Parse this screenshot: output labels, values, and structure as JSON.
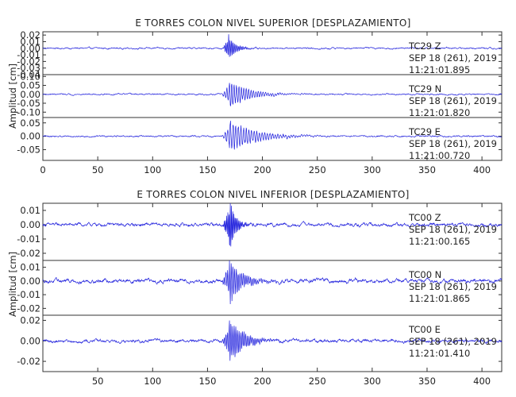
{
  "chart_data": [
    {
      "type": "line",
      "title": "E TORRES COLON NIVEL SUPERIOR [DESPLAZAMIENTO]",
      "ylabel": "Amplitud [cm]",
      "xlim": [
        0,
        418
      ],
      "x_ticks": [
        "0",
        "50",
        "100",
        "150",
        "200",
        "250",
        "300",
        "350",
        "400"
      ],
      "trace_color": "#2222dd",
      "panels": [
        {
          "ylim": [
            -0.04,
            0.025
          ],
          "y_ticks": [
            "0.02",
            "0.01",
            "0.00",
            "-0.01",
            "-0.02",
            "-0.03",
            "-0.04"
          ],
          "info": [
            "TC29   Z",
            "SEP 18 (261), 2019",
            "11:21:01.895"
          ],
          "signal": {
            "onset": 164,
            "peak_time": 169,
            "peak_amp": 0.024,
            "decay": 6,
            "period": 1.3,
            "noise": 0.0006
          }
        },
        {
          "ylim": [
            -0.13,
            0.11
          ],
          "y_ticks": [
            "0.10",
            "0.05",
            "0.00",
            "-0.05",
            "-0.10"
          ],
          "info": [
            "TC29   N",
            "SEP 18 (261), 2019",
            "11:21:01.820"
          ],
          "signal": {
            "onset": 163,
            "peak_time": 170,
            "peak_amp": 0.09,
            "decay": 16,
            "period": 2.2,
            "noise": 0.002
          }
        },
        {
          "ylim": [
            -0.09,
            0.07
          ],
          "y_ticks": [
            "0.05",
            "0.00",
            "-0.05"
          ],
          "info": [
            "TC29   E",
            "SEP 18 (261), 2019",
            "11:21:00.720"
          ],
          "signal": {
            "onset": 163,
            "peak_time": 170,
            "peak_amp": 0.065,
            "decay": 22,
            "period": 2.4,
            "noise": 0.0015
          }
        }
      ]
    },
    {
      "type": "line",
      "title": "E TORRES COLON NIVEL INFERIOR [DESPLAZAMIENTO]",
      "ylabel": "Amplitud [cm]",
      "xlim": [
        0,
        418
      ],
      "x_ticks": [
        "50",
        "100",
        "150",
        "200",
        "250",
        "300",
        "350",
        "400"
      ],
      "trace_color": "#2222dd",
      "panels": [
        {
          "ylim": [
            -0.025,
            0.015
          ],
          "y_ticks": [
            "0.01",
            "0.00",
            "-0.01",
            "-0.02"
          ],
          "info": [
            "TC00   Z",
            "SEP 18 (261), 2019",
            "11:21:00.165"
          ],
          "signal": {
            "onset": 164,
            "peak_time": 170,
            "peak_amp": 0.022,
            "decay": 5,
            "period": 1.1,
            "noise": 0.0006
          }
        },
        {
          "ylim": [
            -0.025,
            0.015
          ],
          "y_ticks": [
            "0.01",
            "0.00",
            "-0.01",
            "-0.02"
          ],
          "info": [
            "TC00   N",
            "SEP 18 (261), 2019",
            "11:21:01.865"
          ],
          "signal": {
            "onset": 163,
            "peak_time": 170,
            "peak_amp": 0.018,
            "decay": 11,
            "period": 1.6,
            "noise": 0.0007
          }
        },
        {
          "ylim": [
            -0.03,
            0.025
          ],
          "y_ticks": [
            "0.02",
            "0.00",
            "-0.02"
          ],
          "info": [
            "TC00   E",
            "SEP 18 (261), 2019",
            "11:21:01.410"
          ],
          "signal": {
            "onset": 163,
            "peak_time": 170,
            "peak_amp": 0.025,
            "decay": 12,
            "period": 1.5,
            "noise": 0.0008
          }
        }
      ]
    }
  ]
}
